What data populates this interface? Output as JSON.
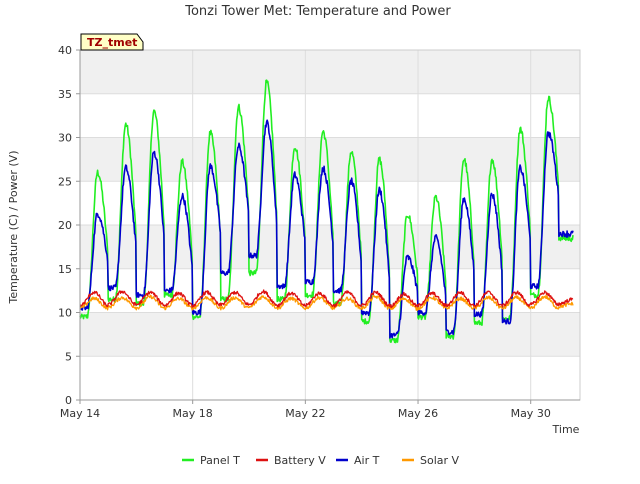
{
  "chart_data": {
    "type": "line",
    "title": "Tonzi Tower Met: Temperature and Power",
    "xlabel": "Time",
    "ylabel": "Temperature (C) / Power (V)",
    "site_tag": "TZ_tmet",
    "xlim": [
      "2015-05-14",
      "2015-05-31T18:00"
    ],
    "ylim": [
      0,
      40
    ],
    "yticks": [
      0,
      5,
      10,
      15,
      20,
      25,
      30,
      35,
      40
    ],
    "xticks": [
      {
        "value": "2015-05-14",
        "label": "May 14"
      },
      {
        "value": "2015-05-18",
        "label": "May 18"
      },
      {
        "value": "2015-05-22",
        "label": "May 22"
      },
      {
        "value": "2015-05-26",
        "label": "May 26"
      },
      {
        "value": "2015-05-30",
        "label": "May 30"
      }
    ],
    "grid": true,
    "legend_position": "bottom",
    "x_dates": [
      "2015-05-14",
      "2015-05-15",
      "2015-05-16",
      "2015-05-17",
      "2015-05-18",
      "2015-05-19",
      "2015-05-20",
      "2015-05-21",
      "2015-05-22",
      "2015-05-23",
      "2015-05-24",
      "2015-05-25",
      "2015-05-26",
      "2015-05-27",
      "2015-05-28",
      "2015-05-29",
      "2015-05-30",
      "2015-05-31"
    ],
    "series": [
      {
        "name": "Panel T",
        "color": "#22ee22",
        "daily_min": [
          9.5,
          11.5,
          11.0,
          12.0,
          9.5,
          11.5,
          14.5,
          11.5,
          12.0,
          11.0,
          9.0,
          6.8,
          9.5,
          7.3,
          8.8,
          9.3,
          12.0,
          18.5
        ],
        "daily_max": [
          26.0,
          31.5,
          33.0,
          27.2,
          30.5,
          33.5,
          36.3,
          29.0,
          30.7,
          28.4,
          27.5,
          21.2,
          23.2,
          27.5,
          27.5,
          31.0,
          34.5,
          18.5
        ]
      },
      {
        "name": "Battery V",
        "color": "#dd1111",
        "daily_min": [
          10.8,
          10.9,
          10.9,
          10.8,
          10.8,
          10.9,
          10.9,
          10.8,
          10.8,
          10.8,
          10.8,
          10.7,
          10.8,
          10.8,
          10.8,
          10.8,
          10.9,
          11.0
        ],
        "daily_max": [
          12.3,
          12.4,
          12.3,
          12.2,
          12.3,
          12.3,
          12.4,
          12.2,
          12.2,
          12.3,
          12.3,
          12.1,
          12.2,
          12.3,
          12.3,
          12.3,
          12.3,
          11.5
        ]
      },
      {
        "name": "Air T",
        "color": "#0000cc",
        "daily_min": [
          10.5,
          12.8,
          12.0,
          12.5,
          10.0,
          14.5,
          16.5,
          13.0,
          13.5,
          12.5,
          10.0,
          7.4,
          10.0,
          7.8,
          9.8,
          9.0,
          13.0,
          19.0
        ],
        "daily_max": [
          21.3,
          26.5,
          28.3,
          23.3,
          26.7,
          29.0,
          31.7,
          25.7,
          26.5,
          25.0,
          24.0,
          16.3,
          18.5,
          23.0,
          23.5,
          26.5,
          30.5,
          19.0
        ]
      },
      {
        "name": "Solar V",
        "color": "#ff9900",
        "daily_min": [
          10.5,
          10.6,
          10.5,
          10.5,
          10.5,
          10.5,
          10.6,
          10.5,
          10.5,
          10.5,
          10.5,
          10.4,
          10.5,
          10.5,
          10.5,
          10.5,
          10.5,
          10.7
        ],
        "daily_max": [
          11.6,
          11.7,
          11.8,
          11.6,
          11.7,
          11.7,
          11.8,
          11.6,
          11.7,
          11.6,
          11.8,
          11.6,
          11.7,
          11.6,
          11.7,
          11.7,
          11.8,
          11.0
        ]
      }
    ]
  }
}
